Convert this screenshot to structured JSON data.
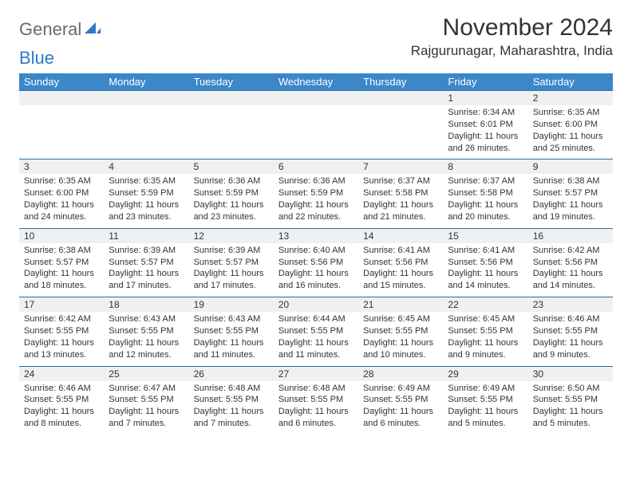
{
  "logo": {
    "text_gray": "General",
    "text_blue": "Blue"
  },
  "title": "November 2024",
  "location": "Rajgurunagar, Maharashtra, India",
  "colors": {
    "header_bg": "#3b87c8",
    "header_text": "#ffffff",
    "daynum_bg": "#eef0f2",
    "border": "#2f6aa5",
    "logo_gray": "#6a6a6a",
    "logo_blue": "#2f78c4"
  },
  "day_headers": [
    "Sunday",
    "Monday",
    "Tuesday",
    "Wednesday",
    "Thursday",
    "Friday",
    "Saturday"
  ],
  "weeks": [
    [
      {
        "n": "",
        "sunrise": "",
        "sunset": "",
        "daylight": ""
      },
      {
        "n": "",
        "sunrise": "",
        "sunset": "",
        "daylight": ""
      },
      {
        "n": "",
        "sunrise": "",
        "sunset": "",
        "daylight": ""
      },
      {
        "n": "",
        "sunrise": "",
        "sunset": "",
        "daylight": ""
      },
      {
        "n": "",
        "sunrise": "",
        "sunset": "",
        "daylight": ""
      },
      {
        "n": "1",
        "sunrise": "Sunrise: 6:34 AM",
        "sunset": "Sunset: 6:01 PM",
        "daylight": "Daylight: 11 hours and 26 minutes."
      },
      {
        "n": "2",
        "sunrise": "Sunrise: 6:35 AM",
        "sunset": "Sunset: 6:00 PM",
        "daylight": "Daylight: 11 hours and 25 minutes."
      }
    ],
    [
      {
        "n": "3",
        "sunrise": "Sunrise: 6:35 AM",
        "sunset": "Sunset: 6:00 PM",
        "daylight": "Daylight: 11 hours and 24 minutes."
      },
      {
        "n": "4",
        "sunrise": "Sunrise: 6:35 AM",
        "sunset": "Sunset: 5:59 PM",
        "daylight": "Daylight: 11 hours and 23 minutes."
      },
      {
        "n": "5",
        "sunrise": "Sunrise: 6:36 AM",
        "sunset": "Sunset: 5:59 PM",
        "daylight": "Daylight: 11 hours and 23 minutes."
      },
      {
        "n": "6",
        "sunrise": "Sunrise: 6:36 AM",
        "sunset": "Sunset: 5:59 PM",
        "daylight": "Daylight: 11 hours and 22 minutes."
      },
      {
        "n": "7",
        "sunrise": "Sunrise: 6:37 AM",
        "sunset": "Sunset: 5:58 PM",
        "daylight": "Daylight: 11 hours and 21 minutes."
      },
      {
        "n": "8",
        "sunrise": "Sunrise: 6:37 AM",
        "sunset": "Sunset: 5:58 PM",
        "daylight": "Daylight: 11 hours and 20 minutes."
      },
      {
        "n": "9",
        "sunrise": "Sunrise: 6:38 AM",
        "sunset": "Sunset: 5:57 PM",
        "daylight": "Daylight: 11 hours and 19 minutes."
      }
    ],
    [
      {
        "n": "10",
        "sunrise": "Sunrise: 6:38 AM",
        "sunset": "Sunset: 5:57 PM",
        "daylight": "Daylight: 11 hours and 18 minutes."
      },
      {
        "n": "11",
        "sunrise": "Sunrise: 6:39 AM",
        "sunset": "Sunset: 5:57 PM",
        "daylight": "Daylight: 11 hours and 17 minutes."
      },
      {
        "n": "12",
        "sunrise": "Sunrise: 6:39 AM",
        "sunset": "Sunset: 5:57 PM",
        "daylight": "Daylight: 11 hours and 17 minutes."
      },
      {
        "n": "13",
        "sunrise": "Sunrise: 6:40 AM",
        "sunset": "Sunset: 5:56 PM",
        "daylight": "Daylight: 11 hours and 16 minutes."
      },
      {
        "n": "14",
        "sunrise": "Sunrise: 6:41 AM",
        "sunset": "Sunset: 5:56 PM",
        "daylight": "Daylight: 11 hours and 15 minutes."
      },
      {
        "n": "15",
        "sunrise": "Sunrise: 6:41 AM",
        "sunset": "Sunset: 5:56 PM",
        "daylight": "Daylight: 11 hours and 14 minutes."
      },
      {
        "n": "16",
        "sunrise": "Sunrise: 6:42 AM",
        "sunset": "Sunset: 5:56 PM",
        "daylight": "Daylight: 11 hours and 14 minutes."
      }
    ],
    [
      {
        "n": "17",
        "sunrise": "Sunrise: 6:42 AM",
        "sunset": "Sunset: 5:55 PM",
        "daylight": "Daylight: 11 hours and 13 minutes."
      },
      {
        "n": "18",
        "sunrise": "Sunrise: 6:43 AM",
        "sunset": "Sunset: 5:55 PM",
        "daylight": "Daylight: 11 hours and 12 minutes."
      },
      {
        "n": "19",
        "sunrise": "Sunrise: 6:43 AM",
        "sunset": "Sunset: 5:55 PM",
        "daylight": "Daylight: 11 hours and 11 minutes."
      },
      {
        "n": "20",
        "sunrise": "Sunrise: 6:44 AM",
        "sunset": "Sunset: 5:55 PM",
        "daylight": "Daylight: 11 hours and 11 minutes."
      },
      {
        "n": "21",
        "sunrise": "Sunrise: 6:45 AM",
        "sunset": "Sunset: 5:55 PM",
        "daylight": "Daylight: 11 hours and 10 minutes."
      },
      {
        "n": "22",
        "sunrise": "Sunrise: 6:45 AM",
        "sunset": "Sunset: 5:55 PM",
        "daylight": "Daylight: 11 hours and 9 minutes."
      },
      {
        "n": "23",
        "sunrise": "Sunrise: 6:46 AM",
        "sunset": "Sunset: 5:55 PM",
        "daylight": "Daylight: 11 hours and 9 minutes."
      }
    ],
    [
      {
        "n": "24",
        "sunrise": "Sunrise: 6:46 AM",
        "sunset": "Sunset: 5:55 PM",
        "daylight": "Daylight: 11 hours and 8 minutes."
      },
      {
        "n": "25",
        "sunrise": "Sunrise: 6:47 AM",
        "sunset": "Sunset: 5:55 PM",
        "daylight": "Daylight: 11 hours and 7 minutes."
      },
      {
        "n": "26",
        "sunrise": "Sunrise: 6:48 AM",
        "sunset": "Sunset: 5:55 PM",
        "daylight": "Daylight: 11 hours and 7 minutes."
      },
      {
        "n": "27",
        "sunrise": "Sunrise: 6:48 AM",
        "sunset": "Sunset: 5:55 PM",
        "daylight": "Daylight: 11 hours and 6 minutes."
      },
      {
        "n": "28",
        "sunrise": "Sunrise: 6:49 AM",
        "sunset": "Sunset: 5:55 PM",
        "daylight": "Daylight: 11 hours and 6 minutes."
      },
      {
        "n": "29",
        "sunrise": "Sunrise: 6:49 AM",
        "sunset": "Sunset: 5:55 PM",
        "daylight": "Daylight: 11 hours and 5 minutes."
      },
      {
        "n": "30",
        "sunrise": "Sunrise: 6:50 AM",
        "sunset": "Sunset: 5:55 PM",
        "daylight": "Daylight: 11 hours and 5 minutes."
      }
    ]
  ]
}
